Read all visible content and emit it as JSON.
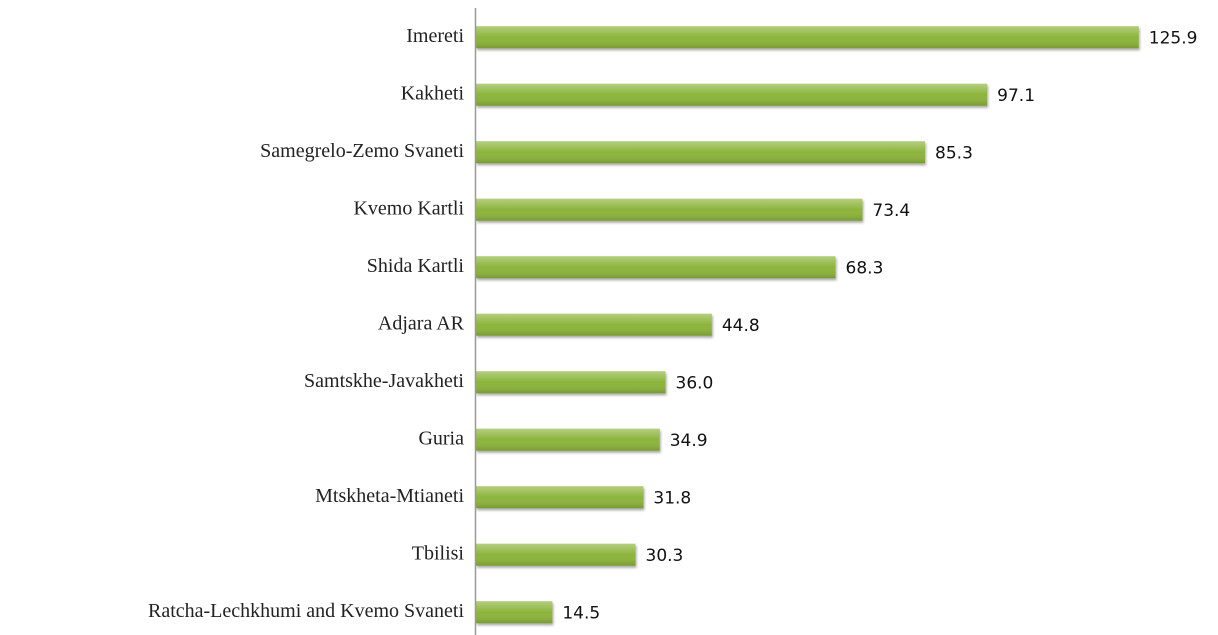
{
  "chart_data": {
    "type": "bar",
    "orientation": "horizontal",
    "categories": [
      "Imereti",
      "Kakheti",
      "Samegrelo-Zemo Svaneti",
      "Kvemo Kartli",
      "Shida Kartli",
      "Adjara AR",
      "Samtskhe-Javakheti",
      "Guria",
      "Mtskheta-Mtianeti",
      "Tbilisi",
      "Ratcha-Lechkhumi and Kvemo Svaneti"
    ],
    "values": [
      125.9,
      97.1,
      85.3,
      73.4,
      68.3,
      44.8,
      36.0,
      34.9,
      31.8,
      30.3,
      14.5
    ],
    "value_labels": [
      "125.9",
      "97.1",
      "85.3",
      "73.4",
      "68.3",
      "44.8",
      "36.0",
      "34.9",
      "31.8",
      "30.3",
      "14.5"
    ],
    "color": "#8cb43a",
    "xlim": [
      0,
      140
    ]
  }
}
